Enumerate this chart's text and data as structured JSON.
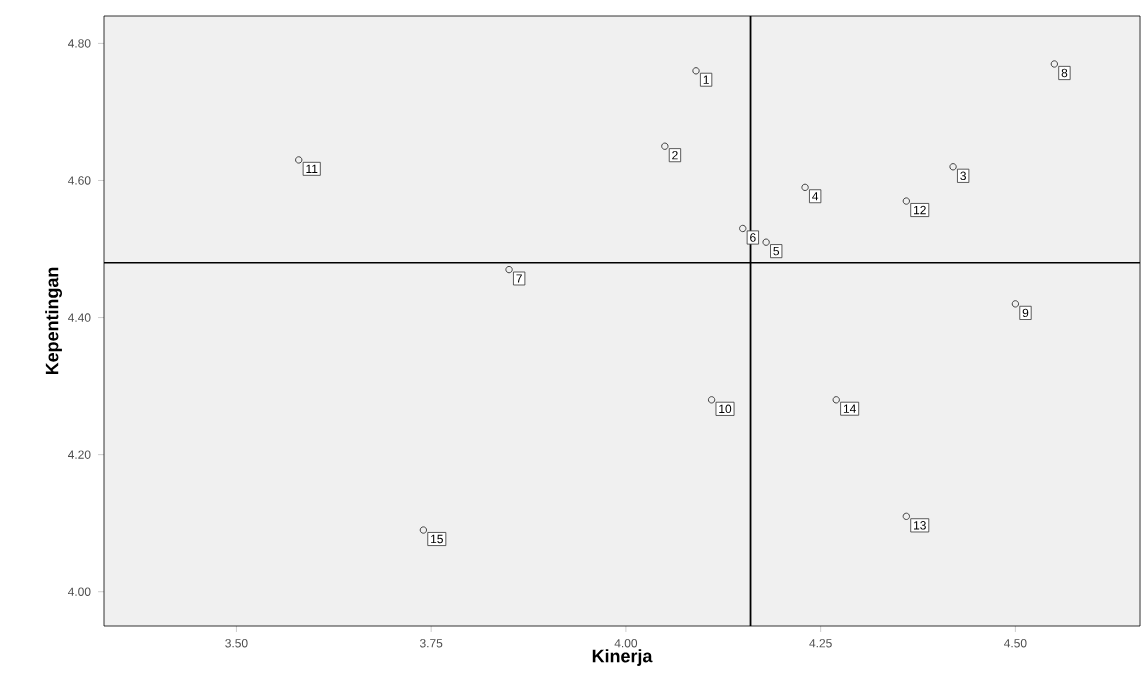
{
  "chart_data": {
    "type": "scatter",
    "xlabel": "Kinerja",
    "ylabel": "Kepentingan",
    "x": [
      4.09,
      4.05,
      4.42,
      4.23,
      4.18,
      4.15,
      3.85,
      4.55,
      4.5,
      4.11,
      3.58,
      4.36,
      4.36,
      4.27,
      3.74
    ],
    "values": [
      4.76,
      4.65,
      4.62,
      4.59,
      4.51,
      4.53,
      4.47,
      4.77,
      4.42,
      4.28,
      4.63,
      4.57,
      4.11,
      4.28,
      4.09
    ],
    "color": "#404040",
    "marker": "circle",
    "grid": false,
    "xlim": [
      3.33,
      4.66
    ],
    "ylim": [
      3.95,
      4.84
    ],
    "xticks": [
      {
        "value": 3.5,
        "label": "3.50"
      },
      {
        "value": 3.75,
        "label": "3.75"
      },
      {
        "value": 4.0,
        "label": "4.00"
      },
      {
        "value": 4.25,
        "label": "4.25"
      },
      {
        "value": 4.5,
        "label": "4.50"
      }
    ],
    "yticks": [
      {
        "value": 4.0,
        "label": "4.00"
      },
      {
        "value": 4.2,
        "label": "4.20"
      },
      {
        "value": 4.4,
        "label": "4.40"
      },
      {
        "value": 4.6,
        "label": "4.60"
      },
      {
        "value": 4.8,
        "label": "4.80"
      }
    ],
    "ref_lines": [
      {
        "axis": "x",
        "value": 4.16
      },
      {
        "axis": "y",
        "value": 4.48
      }
    ],
    "annotations": [
      {
        "text": "1",
        "x": 4.09,
        "y": 4.76
      },
      {
        "text": "2",
        "x": 4.05,
        "y": 4.65
      },
      {
        "text": "3",
        "x": 4.42,
        "y": 4.62
      },
      {
        "text": "4",
        "x": 4.23,
        "y": 4.59
      },
      {
        "text": "5",
        "x": 4.18,
        "y": 4.51
      },
      {
        "text": "6",
        "x": 4.15,
        "y": 4.53
      },
      {
        "text": "7",
        "x": 3.85,
        "y": 4.47
      },
      {
        "text": "8",
        "x": 4.55,
        "y": 4.77
      },
      {
        "text": "9",
        "x": 4.5,
        "y": 4.42
      },
      {
        "text": "10",
        "x": 4.11,
        "y": 4.28
      },
      {
        "text": "11",
        "x": 3.58,
        "y": 4.63
      },
      {
        "text": "12",
        "x": 4.36,
        "y": 4.57
      },
      {
        "text": "13",
        "x": 4.36,
        "y": 4.11
      },
      {
        "text": "14",
        "x": 4.27,
        "y": 4.28
      },
      {
        "text": "15",
        "x": 3.74,
        "y": 4.09
      }
    ]
  }
}
